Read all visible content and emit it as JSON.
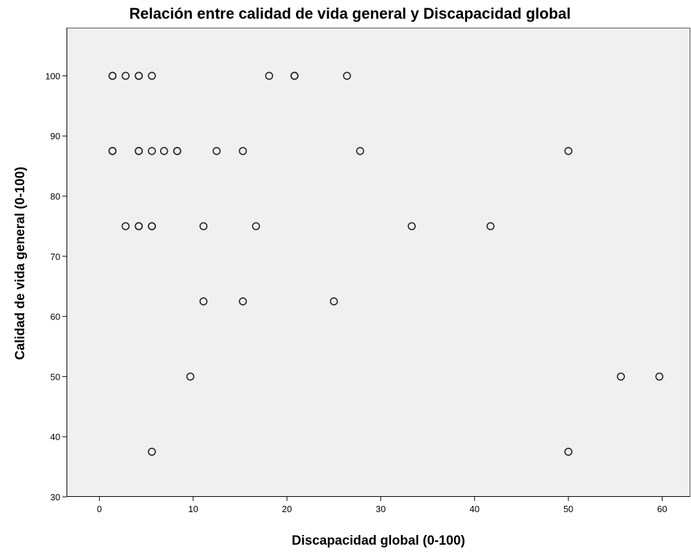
{
  "chart_data": {
    "type": "scatter",
    "title": "Relación entre calidad de vida general y Discapacidad global",
    "xlabel": "Discapacidad global (0-100)",
    "ylabel": "Calidad de vida general (0-100)",
    "xlim": [
      -3.5,
      63
    ],
    "ylim": [
      30,
      108
    ],
    "xticks": [
      0,
      10,
      20,
      30,
      40,
      50,
      60
    ],
    "yticks": [
      30,
      40,
      50,
      60,
      70,
      80,
      90,
      100
    ],
    "grid": false,
    "colors": {
      "background": "#f0f0f0",
      "marker": "#222222"
    },
    "points": [
      {
        "x": 1.4,
        "y": 100
      },
      {
        "x": 1.4,
        "y": 100
      },
      {
        "x": 2.8,
        "y": 100
      },
      {
        "x": 4.2,
        "y": 100
      },
      {
        "x": 4.2,
        "y": 100
      },
      {
        "x": 5.6,
        "y": 100
      },
      {
        "x": 18.1,
        "y": 100
      },
      {
        "x": 20.8,
        "y": 100
      },
      {
        "x": 20.8,
        "y": 100
      },
      {
        "x": 26.4,
        "y": 100
      },
      {
        "x": 1.4,
        "y": 87.5
      },
      {
        "x": 1.4,
        "y": 87.5
      },
      {
        "x": 4.2,
        "y": 87.5
      },
      {
        "x": 4.2,
        "y": 87.5
      },
      {
        "x": 5.6,
        "y": 87.5
      },
      {
        "x": 6.9,
        "y": 87.5
      },
      {
        "x": 8.3,
        "y": 87.5
      },
      {
        "x": 8.3,
        "y": 87.5
      },
      {
        "x": 12.5,
        "y": 87.5
      },
      {
        "x": 15.3,
        "y": 87.5
      },
      {
        "x": 27.8,
        "y": 87.5
      },
      {
        "x": 50.0,
        "y": 87.5
      },
      {
        "x": 2.8,
        "y": 75
      },
      {
        "x": 4.2,
        "y": 75
      },
      {
        "x": 4.2,
        "y": 75
      },
      {
        "x": 5.6,
        "y": 75
      },
      {
        "x": 5.6,
        "y": 75
      },
      {
        "x": 11.1,
        "y": 75
      },
      {
        "x": 16.7,
        "y": 75
      },
      {
        "x": 33.3,
        "y": 75
      },
      {
        "x": 41.7,
        "y": 75
      },
      {
        "x": 11.1,
        "y": 62.5
      },
      {
        "x": 15.3,
        "y": 62.5
      },
      {
        "x": 25.0,
        "y": 62.5
      },
      {
        "x": 9.7,
        "y": 50
      },
      {
        "x": 55.6,
        "y": 50
      },
      {
        "x": 59.7,
        "y": 50
      },
      {
        "x": 5.6,
        "y": 37.5
      },
      {
        "x": 50.0,
        "y": 37.5
      }
    ]
  }
}
